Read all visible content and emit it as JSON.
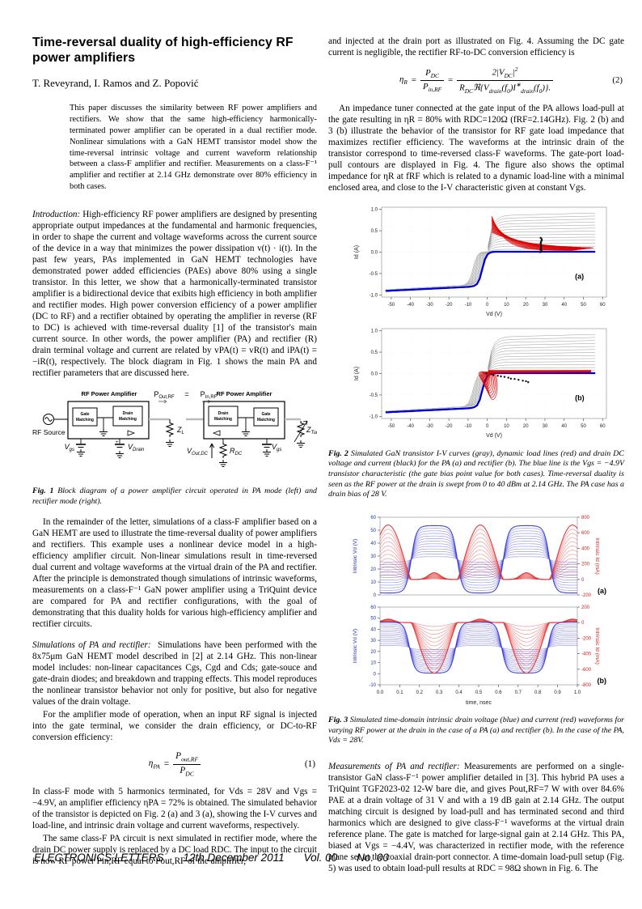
{
  "header": {
    "title": "Time-reversal duality of high-efficiency RF power amplifiers",
    "authors": "T. Reveyrand, I. Ramos and Z. Popović"
  },
  "abstract": "This paper discusses the similarity between RF power amplifiers and rectifiers. We show that the same high-efficiency harmonically-terminated power amplifier can be operated in a dual rectifier mode. Nonlinear simulations with a GaN HEMT transistor model show the time-reversal intrinsic voltage and current waveform relationship between a class-F amplifier and rectifier. Measurements on a class-F⁻¹ amplifier and rectifier at 2.14 GHz demonstrate over 80% efficiency in both cases.",
  "intro": {
    "lead": "Introduction:",
    "text": "High-efficiency RF power amplifiers are designed by presenting appropriate output impedances at the fundamental and harmonic frequencies, in order to shape the current and voltage waveforms across the current source of the device in a way that minimizes the power dissipation v(t) · i(t). In the past few years, PAs implemented in GaN HEMT technologies have demonstrated power added efficiencies (PAEs) above 80% using a single transistor. In this letter, we show that a harmonically-terminated transistor amplifier is a bidirectional device that exibits high efficiency in both amplifier and rectifier modes. High power conversion efficiency of a power amplifier (DC to RF) and a rectifier obtained by operating the amplifier in reverse (RF to DC) is achieved with time-reversal duality [1] of the transistor's main current source. In other words, the power amplifier (PA) and rectifier (R) drain terminal voltage and current are related by vPA(t) = vR(t) and iPA(t) = −iR(t), respectively. The block diagram in Fig. 1 shows the main PA and rectifier parameters that are discussed here."
  },
  "fig1": {
    "tag": "Fig. 1",
    "caption": "Block diagram of a power amplifier circuit operated in PA mode (left) and rectifier mode (right).",
    "labels": {
      "amp_title_left": "RF Power Amplifier",
      "amp_title_right": "RF Power Amplifier",
      "rf_source": "RF Source",
      "gate_l1": "Gate",
      "gate_l2": "Matching",
      "drain_l1": "Drain",
      "drain_l2": "Matching",
      "pout_base": "P",
      "pout_sub": "Out,RF",
      "equals": "=",
      "pin_base": "P",
      "pin_sub": "In,RF",
      "zl_base": "Z",
      "zl_sub": "L",
      "vgs_left_base": "V",
      "vgs_left_sub": "gs",
      "vdrain_base": "V",
      "vdrain_sub": "Drain",
      "vout_base": "V",
      "vout_sub": "Out,DC",
      "rdc_base": "R",
      "rdc_sub": "DC",
      "vgs_right_base": "V",
      "vgs_right_sub": "gs",
      "ztuner_base": "Z",
      "ztuner_sub": "Tuner"
    }
  },
  "para2": "In the remainder of the letter, simulations of a class-F amplifier based on a GaN HEMT are used to illustrate the time-reversal duality of power amplifiers and rectifiers. This example uses a nonlinear device model in a high-efficiency amplifier circuit. Non-linear simulations result in time-reversed dual current and voltage waveforms at the virtual drain of the PA and rectifier. After the principle is demonstrated though simulations of intrinsic waveforms, measurements on a class-F⁻¹ GaN power amplifier using a TriQuint device are compared for PA and rectifier configurations, with the goal of demonstrating that this duality holds for various high-efficiency amplifier and rectifier circuits.",
  "sim": {
    "lead": "Simulations of PA and rectifier:",
    "p1": "Simulations have been performed with the 8x75μm GaN HEMT model described in [2] at 2.14 GHz. This non-linear model includes: non-linear capacitances Cgs, Cgd and Cds; gate-souce and gate-drain diodes; and breakdown and trapping effects. This model reproduces the nonlinear transistor behavior not only for positive, but also for negative values of the drain voltage.",
    "p2": "For the amplifier mode of operation, when an input RF signal is injected into the gate terminal, we consider the drain efficiency, or DC-to-RF conversion efficiency:",
    "p3": "In class-F mode with 5 harmonics terminated, for Vds = 28V and Vgs = −4.9V, an amplifier efficiency ηPA = 72% is obtained. The simulated behavior of the transistor is depicted on Fig. 2 (a) and 3 (a), showing the I-V curves and load-line, and intrinsic drain voltage and current waveforms, respectively.",
    "p4": "The same class-F PA circuit is next simulated in rectifier mode, where the drain DC power supply is replaced by a DC load RDC. The input to the circuit is now RF power Pin,RF equal to Pout,RF of the amplifier,"
  },
  "eq1": {
    "sym": "η",
    "sym_sub": "PA",
    "equals": "=",
    "num_base": "P",
    "num_sub": "out,RF",
    "den_base": "P",
    "den_sub": "DC",
    "number": "(1)"
  },
  "rcol": {
    "p1": "and injected at the drain port as illustrated on Fig. 4. Assuming the DC gate current is negligible, the rectifier RF-to-DC conversion efficiency is",
    "p2": "An impedance tuner connected at the gate input of the PA allows load-pull at the gate resulting in ηR = 80% with RDC=120Ω (fRF=2.14GHz). Fig. 2 (b) and 3 (b) illustrate the behavior of the transistor for RF gate load impedance that maximizes rectifier efficiency. The waveforms at the intrinsic drain of the transistor correspond to time-reversed class-F waveforms. The gate-port load-pull contours are displayed in Fig. 4. The figure also shows the optimal impedance for ηR at fRF which is related to a dynamic load-line with a minimal enclosed area, and close to the I-V characteristic given at constant Vgs."
  },
  "eq2": {
    "sym": "η",
    "sym_sub": "R",
    "eq_a": "=",
    "f1_num_base": "P",
    "f1_num_sub": "DC",
    "f1_den_base": "P",
    "f1_den_sub": "in,RF",
    "eq_b": "=",
    "f2_num_a": "2|V",
    "f2_num_a_sub": "DC",
    "f2_num_b": "|",
    "f2_num_b_sup": "2",
    "f2_den_a": "R",
    "f2_den_a_sub": "DC",
    "f2_den_b": "ℜ{V",
    "f2_den_b_sub": "drain",
    "f2_den_c": "(f",
    "f2_den_c_sub": "0",
    "f2_den_d": ")I",
    "f2_den_d_sup": "∗",
    "f2_den_d_sub": "drain",
    "f2_den_e": "(f",
    "f2_den_e_sub": "0",
    "f2_den_f": ")}.",
    "number": "(2)"
  },
  "fig2cap": {
    "tag": "Fig. 2",
    "text": "Simulated GaN transistor I-V curves (gray), dynamic load lines (red) and drain DC voltage and current (black) for the PA (a) and rectifier (b). The blue line is the Vgs = −4.9V transistor characteristic (the gate bias point value for both cases). Time-reversal duality is seen as the RF power at the drain is swept from 0 to 40 dBm at 2.14 GHz. The PA case has a drain bias of 28 V."
  },
  "fig3cap": {
    "tag": "Fig. 3",
    "text": "Simulated time-domain intrinsic drain voltage (blue) and current (red) waveforms for varying RF power at the drain in the case of a PA (a) and rectifier (b). In the case of the PA, Vds = 28V."
  },
  "meas": {
    "lead": "Measurements of PA and rectifier:",
    "text": "Measurements are performed on a single-transistor GaN class-F⁻¹ power amplifier detailed in [3]. This hybrid PA uses a TriQuint TGF2023-02 12-W bare die, and gives Pout,RF=7 W with over 84.6% PAE at a drain voltage of 31 V and with a 19 dB gain at 2.14 GHz. The output matching circuit is designed by load-pull and has terminated second and third harmonics which are designed to give class-F⁻¹ waveforms at the virtual drain reference plane. The gate is matched for large-signal gain at 2.14 GHz. This PA, biased at Vgs = −4.4V, was characterized in rectifier mode, with the reference plane set at the coaxial drain-port connector. A time-domain load-pull setup (Fig. 5) was used to obtain load-pull results at RDC = 98Ω shown in Fig. 6. The"
  },
  "footer": {
    "journal": "ELECTRONICS LETTERS",
    "date": "12th December 2011",
    "vol": "Vol. 00",
    "no": "No. 00"
  },
  "chart_data": [
    {
      "id": "fig2a",
      "type": "line",
      "panel_label": "(a)",
      "xlabel": "Vd (V)",
      "ylabel": "Id (A)",
      "xlim": [
        -55,
        62
      ],
      "ylim": [
        -1.05,
        1.05
      ],
      "xticks": [
        -50,
        -40,
        -30,
        -20,
        -10,
        0,
        10,
        20,
        30,
        40,
        50,
        60
      ],
      "yticks": [
        -1.0,
        -0.5,
        0.0,
        0.5,
        1.0
      ],
      "series": {
        "gray": "transistor I-V curves, Id saturating 0.07 A to 0.85 A for Vd 0 to 60 V",
        "blue": "Vgs = −4.9V characteristic: Id ≈ −0.9 A at Vd = −50 V rising to 0 A near Vd = 0, flat at 0 for Vd > 0",
        "red": "PA dynamic load lines sweeping from (2 V, 0.8 A) down to (55 V, 0.05 A)",
        "black": "DC bias points: Vd = 28 V, Id from 0 to 0.33 A"
      }
    },
    {
      "id": "fig2b",
      "type": "line",
      "panel_label": "(b)",
      "xlabel": "Vd (V)",
      "ylabel": "Id (A)",
      "xlim": [
        -55,
        62
      ],
      "ylim": [
        -1.05,
        1.05
      ],
      "xticks": [
        -50,
        -40,
        -30,
        -20,
        -10,
        0,
        10,
        20,
        30,
        40,
        50,
        60
      ],
      "yticks": [
        -1.0,
        -0.5,
        0.0,
        0.5,
        1.0
      ],
      "series": {
        "gray": "transistor I-V curves",
        "blue": "Vgs = −4.9V characteristic",
        "red": "rectifier dynamic load lines looping near Vd = 0 down to Id ≈ −0.65 A with flat branch near 0.05 A out to 55 V",
        "black": "DC points along line from (0,0) to (22 V, −0.2 A)"
      }
    },
    {
      "id": "fig3a",
      "type": "line",
      "panel_label": "(a)",
      "ylabel_left": "Intrinsic Vd (V)",
      "ylabel_right": "Intrinsic Id (mA)",
      "xlim": [
        0,
        1
      ],
      "xticks": [
        0.0,
        0.1,
        0.2,
        0.3,
        0.4,
        0.5,
        0.6,
        0.7,
        0.8,
        0.9,
        1.0
      ],
      "ylim_left": [
        0,
        60
      ],
      "yticks_left": [
        0,
        10,
        20,
        30,
        40,
        50,
        60
      ],
      "ylim_right": [
        -200,
        800
      ],
      "yticks_right": [
        -200,
        0,
        200,
        400,
        600,
        800
      ],
      "series": {
        "blue": "drain voltage square-like waves about 27.5 V bias, swinging 2 V to 55 V, period 0.467 ns",
        "red": "drain current half-sine pulses 0 to 700 mA peaking near t = 0.03, 0.5, 0.97 ns"
      }
    },
    {
      "id": "fig3b",
      "type": "line",
      "panel_label": "(b)",
      "xlabel": "time, nsec",
      "ylabel_left": "Intrinsic Vd (V)",
      "ylabel_right": "Intrinsic Id (mA)",
      "xlim": [
        0,
        1
      ],
      "xticks": [
        0.0,
        0.1,
        0.2,
        0.3,
        0.4,
        0.5,
        0.6,
        0.7,
        0.8,
        0.9,
        1.0
      ],
      "ylim_left": [
        -10,
        60
      ],
      "yticks_left": [
        -10,
        0,
        10,
        20,
        30,
        40,
        50,
        60
      ],
      "ylim_right": [
        -800,
        200
      ],
      "yticks_right": [
        -800,
        -600,
        -400,
        -200,
        0,
        200
      ],
      "series": {
        "blue": "drain voltage square-like waves swinging 0 V to 46 V",
        "red": "drain current pulses 0 to −650 mA centred at t ≈ 0.27 and 0.74 ns"
      }
    }
  ]
}
